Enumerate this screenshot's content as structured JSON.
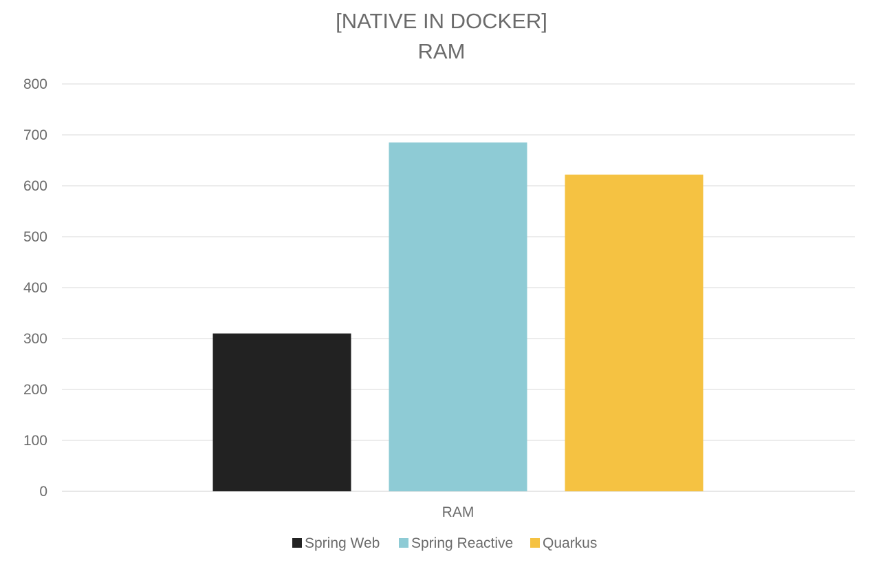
{
  "chart_data": {
    "type": "bar",
    "title_lines": [
      "[NATIVE IN DOCKER]",
      "RAM"
    ],
    "categories": [
      "RAM"
    ],
    "series": [
      {
        "name": "Spring Web",
        "values": [
          310
        ],
        "color": "#222222"
      },
      {
        "name": "Spring Reactive",
        "values": [
          685
        ],
        "color": "#8ecbd5"
      },
      {
        "name": "Quarkus",
        "values": [
          622
        ],
        "color": "#f5c242"
      }
    ],
    "ylim": [
      0,
      800
    ],
    "yticks": [
      0,
      100,
      200,
      300,
      400,
      500,
      600,
      700,
      800
    ],
    "grid": true,
    "legend_position": "bottom"
  }
}
